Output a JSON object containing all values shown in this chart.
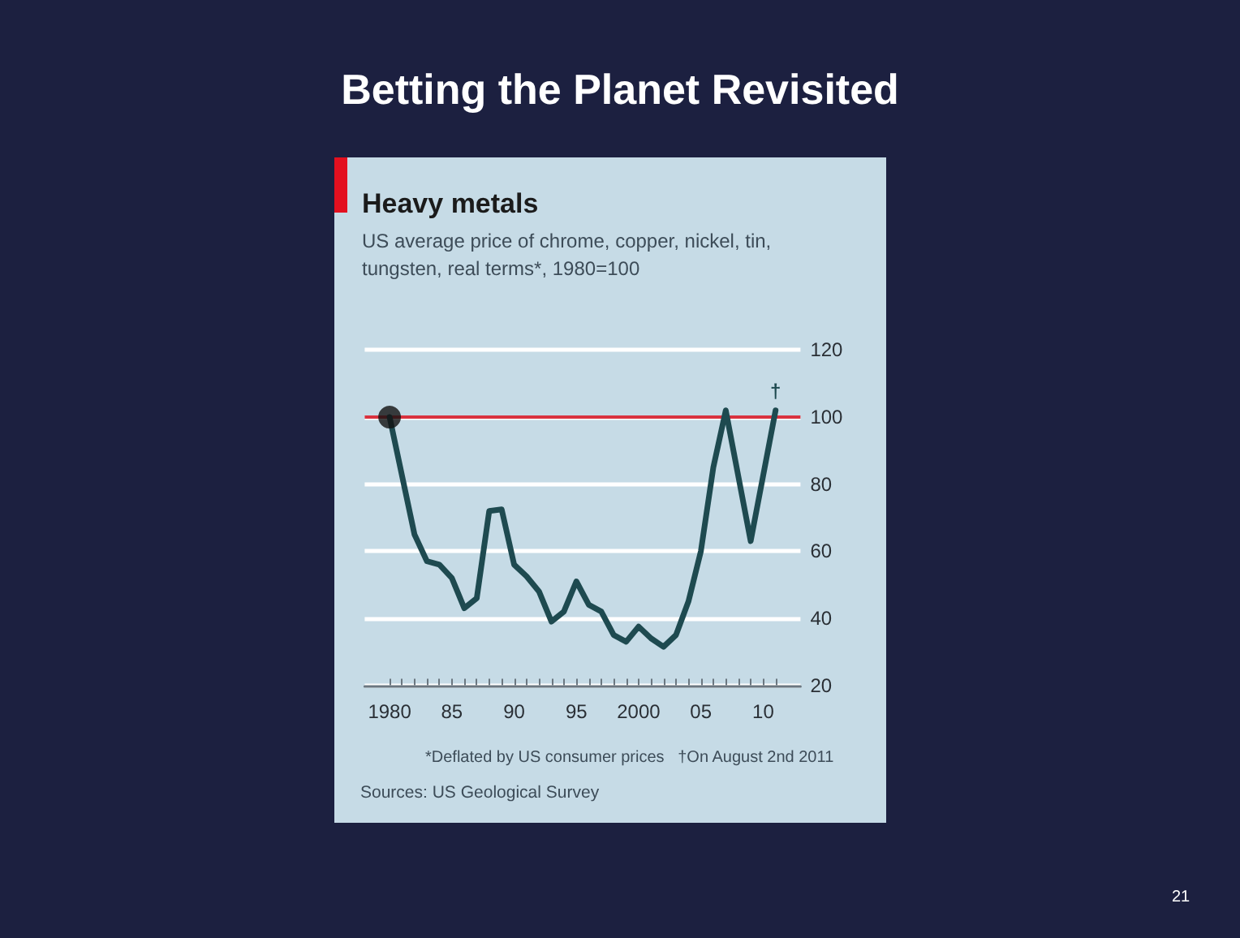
{
  "chart_data": {
    "type": "line",
    "title": "Heavy metals",
    "subtitle": "US average price of chrome, copper, nickel, tin, tungsten, real terms*, 1980=100",
    "x": [
      1980,
      1982,
      1983,
      1984,
      1985,
      1986,
      1987,
      1988,
      1989,
      1990,
      1991,
      1992,
      1993,
      1994,
      1995,
      1996,
      1997,
      1998,
      1999,
      2000,
      2001,
      2002,
      2003,
      2004,
      2005,
      2006,
      2007,
      2009,
      2011
    ],
    "series": [
      {
        "color": "#1e4a50",
        "values": [
          100,
          65,
          57,
          56,
          52,
          43,
          46,
          72,
          72.5,
          56,
          52.5,
          48,
          39,
          42,
          51,
          44,
          42,
          35,
          33,
          37.5,
          34,
          31.5,
          35,
          45,
          60,
          85,
          102,
          63,
          102
        ]
      },
      {
        "type": "scatter",
        "color": "#111111",
        "x": [
          1980
        ],
        "values": [
          100
        ],
        "marker": "circle"
      }
    ],
    "xlim": [
      1978,
      2013
    ],
    "xticks": [
      {
        "value": 1980,
        "label": "1980"
      },
      {
        "value": 1981,
        "label": null
      },
      {
        "value": 1982,
        "label": null
      },
      {
        "value": 1983,
        "label": null
      },
      {
        "value": 1984,
        "label": null
      },
      {
        "value": 1985,
        "label": "85"
      },
      {
        "value": 1986,
        "label": null
      },
      {
        "value": 1987,
        "label": null
      },
      {
        "value": 1988,
        "label": null
      },
      {
        "value": 1989,
        "label": null
      },
      {
        "value": 1990,
        "label": "90"
      },
      {
        "value": 1991,
        "label": null
      },
      {
        "value": 1992,
        "label": null
      },
      {
        "value": 1993,
        "label": null
      },
      {
        "value": 1994,
        "label": null
      },
      {
        "value": 1995,
        "label": "95"
      },
      {
        "value": 1996,
        "label": null
      },
      {
        "value": 1997,
        "label": null
      },
      {
        "value": 1998,
        "label": null
      },
      {
        "value": 1999,
        "label": null
      },
      {
        "value": 2000,
        "label": "2000"
      },
      {
        "value": 2001,
        "label": null
      },
      {
        "value": 2002,
        "label": null
      },
      {
        "value": 2003,
        "label": null
      },
      {
        "value": 2004,
        "label": null
      },
      {
        "value": 2005,
        "label": "05"
      },
      {
        "value": 2006,
        "label": null
      },
      {
        "value": 2007,
        "label": null
      },
      {
        "value": 2008,
        "label": null
      },
      {
        "value": 2009,
        "label": null
      },
      {
        "value": 2010,
        "label": "10"
      },
      {
        "value": 2011,
        "label": null
      }
    ],
    "ylim": [
      20,
      120
    ],
    "yticks": [
      20,
      40,
      60,
      80,
      100,
      120
    ],
    "grid": "y",
    "marker": "none",
    "line_style": "solid",
    "ref_lines": [
      {
        "axis": "y",
        "value": 100,
        "color": "#d9323f"
      }
    ],
    "annotations": [
      "Betting the Planet Revisited",
      "*Deflated by US consumer prices   †On August 2nd 2011",
      "Sources: US Geological Survey",
      "21",
      {
        "text": "†",
        "x": 2011,
        "y": 102
      }
    ]
  }
}
